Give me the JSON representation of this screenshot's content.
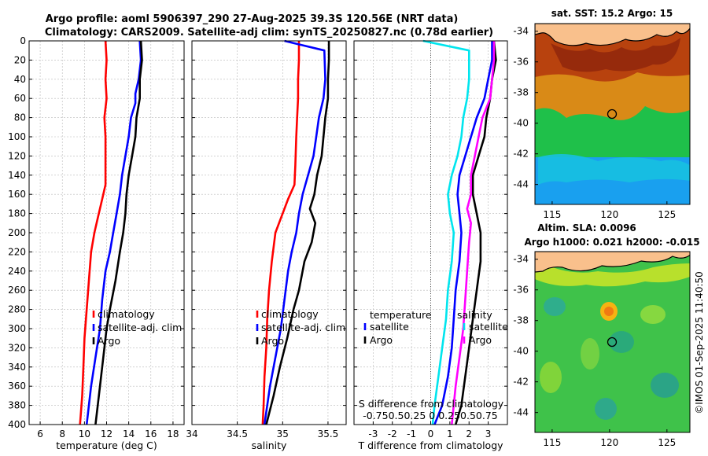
{
  "header": {
    "title_line1": "Argo profile: aoml 5906397_290 27-Aug-2025 39.3S 120.56E (NRT data)",
    "title_line2": "Climatology: CARS2009. Satellite-adj clim: synTS_20250827.nc (0.78d earlier)"
  },
  "colors": {
    "climatology": "#ff0000",
    "satellite": "#0000ff",
    "argo": "#000000",
    "s_satellite": "#00e5ee",
    "s_argo": "#ff00ff"
  },
  "chart_data": [
    {
      "type": "line",
      "name": "temperature",
      "xlabel": "temperature (deg C)",
      "xlim": [
        5,
        19
      ],
      "xticks": [
        6,
        8,
        10,
        12,
        14,
        16,
        18
      ],
      "ylim": [
        400,
        0
      ],
      "yticks": [
        0,
        20,
        40,
        60,
        80,
        100,
        120,
        140,
        160,
        180,
        200,
        220,
        240,
        260,
        280,
        300,
        320,
        340,
        360,
        380,
        400
      ],
      "legend": [
        "climatology",
        "satellite-adj. clim",
        "Argo"
      ],
      "series": [
        {
          "name": "climatology",
          "points": [
            [
              11.9,
              0
            ],
            [
              12.0,
              20
            ],
            [
              11.9,
              40
            ],
            [
              12.0,
              60
            ],
            [
              11.8,
              80
            ],
            [
              11.9,
              100
            ],
            [
              11.9,
              130
            ],
            [
              11.9,
              150
            ],
            [
              11.6,
              165
            ],
            [
              11.2,
              185
            ],
            [
              10.9,
              200
            ],
            [
              10.6,
              220
            ],
            [
              10.4,
              250
            ],
            [
              10.2,
              280
            ],
            [
              10.0,
              310
            ],
            [
              9.9,
              340
            ],
            [
              9.8,
              370
            ],
            [
              9.6,
              400
            ]
          ]
        },
        {
          "name": "satellite-adj. clim",
          "points": [
            [
              15.0,
              0
            ],
            [
              15.1,
              20
            ],
            [
              14.9,
              40
            ],
            [
              14.6,
              55
            ],
            [
              14.6,
              65
            ],
            [
              14.2,
              80
            ],
            [
              14.0,
              100
            ],
            [
              13.7,
              120
            ],
            [
              13.4,
              140
            ],
            [
              13.2,
              160
            ],
            [
              12.9,
              180
            ],
            [
              12.6,
              200
            ],
            [
              12.3,
              220
            ],
            [
              11.9,
              240
            ],
            [
              11.6,
              270
            ],
            [
              11.4,
              300
            ],
            [
              11.0,
              330
            ],
            [
              10.6,
              360
            ],
            [
              10.2,
              400
            ]
          ]
        },
        {
          "name": "Argo",
          "points": [
            [
              15.1,
              0
            ],
            [
              15.2,
              20
            ],
            [
              15.0,
              40
            ],
            [
              15.0,
              60
            ],
            [
              14.7,
              80
            ],
            [
              14.6,
              100
            ],
            [
              14.3,
              120
            ],
            [
              14.0,
              140
            ],
            [
              13.8,
              160
            ],
            [
              13.7,
              180
            ],
            [
              13.5,
              200
            ],
            [
              13.2,
              220
            ],
            [
              12.8,
              250
            ],
            [
              12.3,
              280
            ],
            [
              12.0,
              300
            ],
            [
              11.7,
              330
            ],
            [
              11.4,
              360
            ],
            [
              11.0,
              400
            ]
          ]
        }
      ]
    },
    {
      "type": "line",
      "name": "salinity",
      "xlabel": "salinity",
      "xlim": [
        34,
        35.7
      ],
      "xticks": [
        34,
        34.5,
        35,
        35.5
      ],
      "xticklabels": [
        "34",
        "34.5",
        "35",
        "35.5"
      ],
      "ylim": [
        400,
        0
      ],
      "legend": [
        "climatology",
        "satellite-adj. clim",
        "Argo"
      ],
      "series": [
        {
          "name": "climatology",
          "points": [
            [
              35.18,
              0
            ],
            [
              35.18,
              20
            ],
            [
              35.17,
              40
            ],
            [
              35.17,
              60
            ],
            [
              35.16,
              80
            ],
            [
              35.15,
              100
            ],
            [
              35.14,
              130
            ],
            [
              35.13,
              150
            ],
            [
              35.06,
              165
            ],
            [
              34.98,
              185
            ],
            [
              34.92,
              200
            ],
            [
              34.88,
              230
            ],
            [
              34.85,
              260
            ],
            [
              34.83,
              290
            ],
            [
              34.82,
              320
            ],
            [
              34.8,
              350
            ],
            [
              34.79,
              380
            ],
            [
              34.78,
              400
            ]
          ]
        },
        {
          "name": "satellite-adj. clim",
          "points": [
            [
              35.02,
              0
            ],
            [
              35.46,
              10
            ],
            [
              35.47,
              40
            ],
            [
              35.45,
              60
            ],
            [
              35.4,
              80
            ],
            [
              35.37,
              100
            ],
            [
              35.34,
              120
            ],
            [
              35.28,
              140
            ],
            [
              35.22,
              160
            ],
            [
              35.18,
              180
            ],
            [
              35.15,
              200
            ],
            [
              35.1,
              220
            ],
            [
              35.06,
              240
            ],
            [
              35.02,
              270
            ],
            [
              34.98,
              300
            ],
            [
              34.92,
              330
            ],
            [
              34.86,
              360
            ],
            [
              34.8,
              400
            ]
          ]
        },
        {
          "name": "Argo",
          "points": [
            [
              35.51,
              0
            ],
            [
              35.51,
              20
            ],
            [
              35.5,
              40
            ],
            [
              35.5,
              60
            ],
            [
              35.47,
              80
            ],
            [
              35.45,
              100
            ],
            [
              35.43,
              120
            ],
            [
              35.38,
              140
            ],
            [
              35.35,
              160
            ],
            [
              35.3,
              175
            ],
            [
              35.36,
              190
            ],
            [
              35.32,
              210
            ],
            [
              35.24,
              230
            ],
            [
              35.18,
              260
            ],
            [
              35.12,
              280
            ],
            [
              35.05,
              310
            ],
            [
              34.97,
              340
            ],
            [
              34.9,
              370
            ],
            [
              34.82,
              400
            ]
          ]
        }
      ]
    },
    {
      "type": "line",
      "name": "difference",
      "xlabel": "T difference from climatology",
      "xlim": [
        -4,
        4
      ],
      "xticks": [
        -3,
        -2,
        -1,
        0,
        1,
        2,
        3
      ],
      "s_axis_label": "S difference from climatology",
      "s_axis_ticks": "-0.750.50.25  0  0.250.50.75",
      "ylim": [
        400,
        0
      ],
      "legend_temperature": {
        "title": "temperature",
        "items": [
          "satellite",
          "Argo"
        ]
      },
      "legend_salinity": {
        "title": "salinity",
        "items": [
          "satellite",
          "Argo"
        ]
      },
      "series": [
        {
          "name": "T satellite",
          "points": [
            [
              3.2,
              0
            ],
            [
              3.2,
              20
            ],
            [
              3.0,
              40
            ],
            [
              2.8,
              60
            ],
            [
              2.4,
              80
            ],
            [
              2.1,
              100
            ],
            [
              1.8,
              120
            ],
            [
              1.5,
              140
            ],
            [
              1.4,
              160
            ],
            [
              1.5,
              180
            ],
            [
              1.6,
              200
            ],
            [
              1.5,
              230
            ],
            [
              1.3,
              260
            ],
            [
              1.2,
              290
            ],
            [
              1.1,
              320
            ],
            [
              0.9,
              350
            ],
            [
              0.6,
              380
            ],
            [
              0.2,
              400
            ]
          ]
        },
        {
          "name": "T Argo",
          "points": [
            [
              3.3,
              0
            ],
            [
              3.4,
              20
            ],
            [
              3.2,
              40
            ],
            [
              3.1,
              60
            ],
            [
              2.9,
              80
            ],
            [
              2.8,
              100
            ],
            [
              2.5,
              120
            ],
            [
              2.2,
              140
            ],
            [
              2.2,
              160
            ],
            [
              2.4,
              180
            ],
            [
              2.6,
              200
            ],
            [
              2.6,
              230
            ],
            [
              2.4,
              260
            ],
            [
              2.2,
              290
            ],
            [
              2.0,
              320
            ],
            [
              1.8,
              350
            ],
            [
              1.6,
              380
            ],
            [
              1.3,
              400
            ]
          ]
        },
        {
          "name": "S satellite",
          "points": [
            [
              -0.4,
              0
            ],
            [
              2.0,
              10
            ],
            [
              2.0,
              40
            ],
            [
              1.9,
              60
            ],
            [
              1.7,
              80
            ],
            [
              1.6,
              100
            ],
            [
              1.4,
              120
            ],
            [
              1.1,
              140
            ],
            [
              0.9,
              160
            ],
            [
              1.0,
              180
            ],
            [
              1.2,
              200
            ],
            [
              1.1,
              230
            ],
            [
              0.9,
              260
            ],
            [
              0.8,
              290
            ],
            [
              0.6,
              320
            ],
            [
              0.4,
              350
            ],
            [
              0.2,
              380
            ],
            [
              0.1,
              400
            ]
          ]
        },
        {
          "name": "S Argo",
          "points": [
            [
              3.3,
              0
            ],
            [
              3.3,
              20
            ],
            [
              3.2,
              40
            ],
            [
              3.1,
              60
            ],
            [
              2.7,
              80
            ],
            [
              2.5,
              100
            ],
            [
              2.3,
              120
            ],
            [
              2.1,
              140
            ],
            [
              2.1,
              160
            ],
            [
              1.9,
              175
            ],
            [
              2.1,
              190
            ],
            [
              2.0,
              210
            ],
            [
              1.9,
              240
            ],
            [
              1.8,
              270
            ],
            [
              1.7,
              300
            ],
            [
              1.5,
              330
            ],
            [
              1.3,
              360
            ],
            [
              1.1,
              400
            ]
          ]
        }
      ]
    }
  ],
  "maps": {
    "sst": {
      "title": "sat. SST: 15.2 Argo: 15",
      "yticks": [
        "-34",
        "-36",
        "-38",
        "-40",
        "-42",
        "-44"
      ],
      "xticks": [
        "115",
        "120",
        "125"
      ]
    },
    "sla": {
      "title_line1": "Altim. SLA: 0.0096",
      "title_line2": "Argo h1000: 0.021 h2000: -0.015",
      "yticks": [
        "-34",
        "-36",
        "-38",
        "-40",
        "-42",
        "-44"
      ],
      "xticks": [
        "115",
        "120",
        "125"
      ]
    }
  },
  "footer": {
    "credit": "©IMOS 01-Sep-2025 11:40:50"
  }
}
